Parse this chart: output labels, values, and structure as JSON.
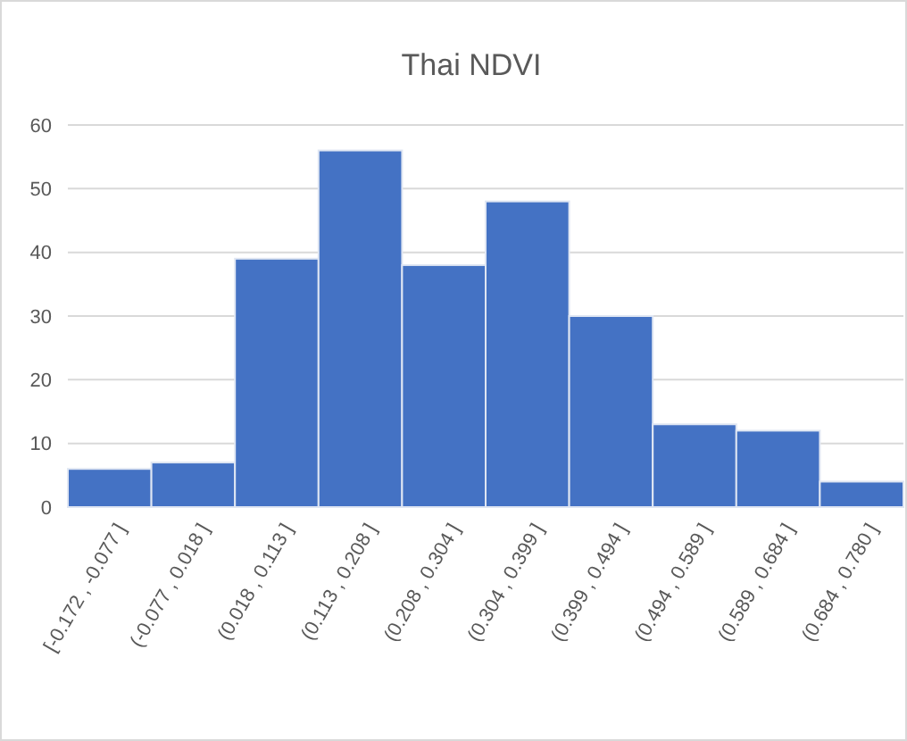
{
  "chart_data": {
    "type": "bar",
    "title": "Thai NDVI",
    "categories": [
      "[-0.172 , -0.077 ]",
      "(-0.077 , 0.018 ]",
      "(0.018 , 0.113 ]",
      "(0.113 , 0.208 ]",
      "(0.208 , 0.304 ]",
      "(0.304 , 0.399 ]",
      "(0.399 , 0.494 ]",
      "(0.494 , 0.589 ]",
      "(0.589 , 0.684 ]",
      "(0.684 , 0.780 ]"
    ],
    "values": [
      6,
      7,
      39,
      56,
      38,
      48,
      30,
      13,
      12,
      4
    ],
    "color": "#4472c4",
    "ylim": [
      0,
      60
    ],
    "yticks": [
      0,
      10,
      20,
      30,
      40,
      50,
      60
    ],
    "grid": "y"
  }
}
